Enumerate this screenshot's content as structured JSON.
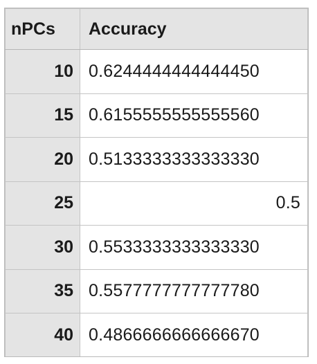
{
  "chart_data": {
    "type": "table",
    "columns": [
      "nPCs",
      "Accuracy"
    ],
    "rows": [
      {
        "npcs": "10",
        "accuracy": "0.6244444444444450"
      },
      {
        "npcs": "15",
        "accuracy": "0.6155555555555560"
      },
      {
        "npcs": "20",
        "accuracy": "0.5133333333333330"
      },
      {
        "npcs": "25",
        "accuracy": "0.5"
      },
      {
        "npcs": "30",
        "accuracy": "0.5533333333333330"
      },
      {
        "npcs": "35",
        "accuracy": "0.5577777777777780"
      },
      {
        "npcs": "40",
        "accuracy": "0.4866666666666670"
      }
    ]
  },
  "colors": {
    "header_bg": "#e4e4e4",
    "index_bg": "#e4e4e4",
    "cell_bg": "#ffffff",
    "border": "#c4c4c4",
    "text": "#1a1a1a"
  }
}
